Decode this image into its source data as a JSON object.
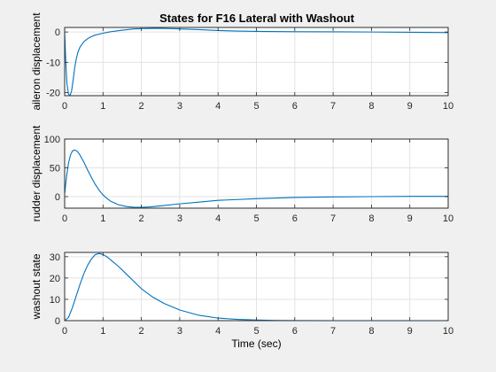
{
  "figure": {
    "title": "States for F16 Lateral with Washout",
    "background": "#f0f0f0",
    "line_color": "#0072bd",
    "axes_color": "#262626",
    "grid_color": "#e3e3e3"
  },
  "chart_data": [
    {
      "type": "line",
      "title": "States for F16 Lateral with Washout",
      "xlabel": "",
      "ylabel": "aileron displacement",
      "xlim": [
        0,
        10
      ],
      "ylim": [
        -21,
        1.5
      ],
      "xticks": [
        0,
        1,
        2,
        3,
        4,
        5,
        6,
        7,
        8,
        9,
        10
      ],
      "yticks": [
        -20,
        -10,
        0
      ],
      "grid": true,
      "series": [
        {
          "x": [
            0,
            0.03,
            0.06,
            0.1,
            0.14,
            0.18,
            0.22,
            0.26,
            0.3,
            0.35,
            0.4,
            0.5,
            0.6,
            0.7,
            0.8,
            1.0,
            1.2,
            1.5,
            1.8,
            2.0,
            2.3,
            2.5,
            2.8,
            3.0,
            3.5,
            4.0,
            4.5,
            5.0,
            6.0,
            7.0,
            8.0,
            9.0,
            10.0
          ],
          "y": [
            0,
            -10,
            -17,
            -20.5,
            -21,
            -19.5,
            -16,
            -12,
            -9,
            -6.5,
            -5,
            -3.2,
            -2.2,
            -1.5,
            -1.0,
            -0.4,
            0.1,
            0.6,
            1.0,
            1.1,
            1.2,
            1.2,
            1.1,
            1.0,
            0.8,
            0.5,
            0.3,
            0.2,
            0.1,
            0.05,
            0,
            -0.1,
            -0.2
          ]
        }
      ]
    },
    {
      "type": "line",
      "title": "",
      "xlabel": "",
      "ylabel": "rudder displacement",
      "xlim": [
        0,
        10
      ],
      "ylim": [
        -20,
        100
      ],
      "xticks": [
        0,
        1,
        2,
        3,
        4,
        5,
        6,
        7,
        8,
        9,
        10
      ],
      "yticks": [
        0,
        50,
        100
      ],
      "grid": true,
      "series": [
        {
          "x": [
            0,
            0.05,
            0.1,
            0.15,
            0.2,
            0.25,
            0.3,
            0.35,
            0.4,
            0.5,
            0.6,
            0.7,
            0.8,
            0.9,
            1.0,
            1.1,
            1.2,
            1.4,
            1.6,
            1.8,
            2.0,
            2.2,
            2.5,
            3.0,
            3.5,
            4.0,
            5.0,
            6.0,
            7.0,
            8.0,
            9.0,
            10.0
          ],
          "y": [
            5,
            35,
            58,
            72,
            79,
            81,
            80,
            77,
            72,
            60,
            46,
            33,
            21,
            11,
            3,
            -3,
            -8,
            -14,
            -17,
            -18.5,
            -18.5,
            -18,
            -16,
            -12.5,
            -9.5,
            -6.5,
            -3.5,
            -1.5,
            -0.5,
            0,
            0.5,
            0.5
          ]
        }
      ]
    },
    {
      "type": "line",
      "title": "",
      "xlabel": "Time (sec)",
      "ylabel": "washout state",
      "xlim": [
        0,
        10
      ],
      "ylim": [
        0,
        32
      ],
      "xticks": [
        0,
        1,
        2,
        3,
        4,
        5,
        6,
        7,
        8,
        9,
        10
      ],
      "yticks": [
        0,
        10,
        20,
        30
      ],
      "grid": true,
      "series": [
        {
          "x": [
            0,
            0.1,
            0.2,
            0.3,
            0.4,
            0.5,
            0.6,
            0.7,
            0.8,
            0.9,
            1.0,
            1.1,
            1.2,
            1.4,
            1.6,
            1.8,
            2.0,
            2.3,
            2.6,
            3.0,
            3.5,
            4.0,
            4.5,
            5.0,
            5.5,
            6.0,
            7.0,
            8.0,
            9.0,
            10.0
          ],
          "y": [
            0,
            1.5,
            6,
            11.5,
            17,
            22,
            26,
            29,
            31,
            31.5,
            31,
            30,
            28.5,
            25.5,
            22,
            18.5,
            15,
            11,
            8,
            5,
            2.5,
            1.2,
            0.6,
            0.3,
            0.1,
            0.05,
            0,
            0,
            0,
            0
          ]
        }
      ]
    }
  ]
}
